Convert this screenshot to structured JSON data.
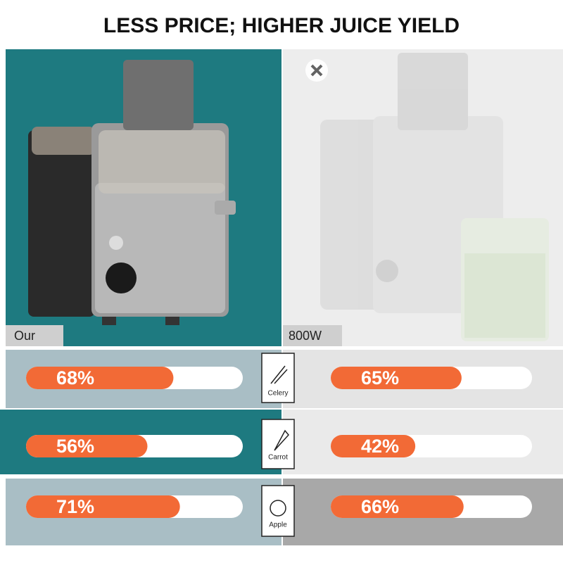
{
  "chart_data": {
    "type": "bar",
    "title": "LESS PRICE; HIGHER JUICE YIELD",
    "categories": [
      "Celery",
      "Carrot",
      "Apple"
    ],
    "series": [
      {
        "name": "Our",
        "color": "#f26a36",
        "values": [
          68,
          56,
          71
        ],
        "value_labels": [
          "68%",
          "56%",
          "71%"
        ]
      },
      {
        "name": "800W",
        "color": "#f26a36",
        "values": [
          65,
          42,
          66
        ],
        "value_labels": [
          "65%",
          "42%",
          "66%"
        ]
      }
    ],
    "xlim": [
      0,
      100
    ]
  }
}
